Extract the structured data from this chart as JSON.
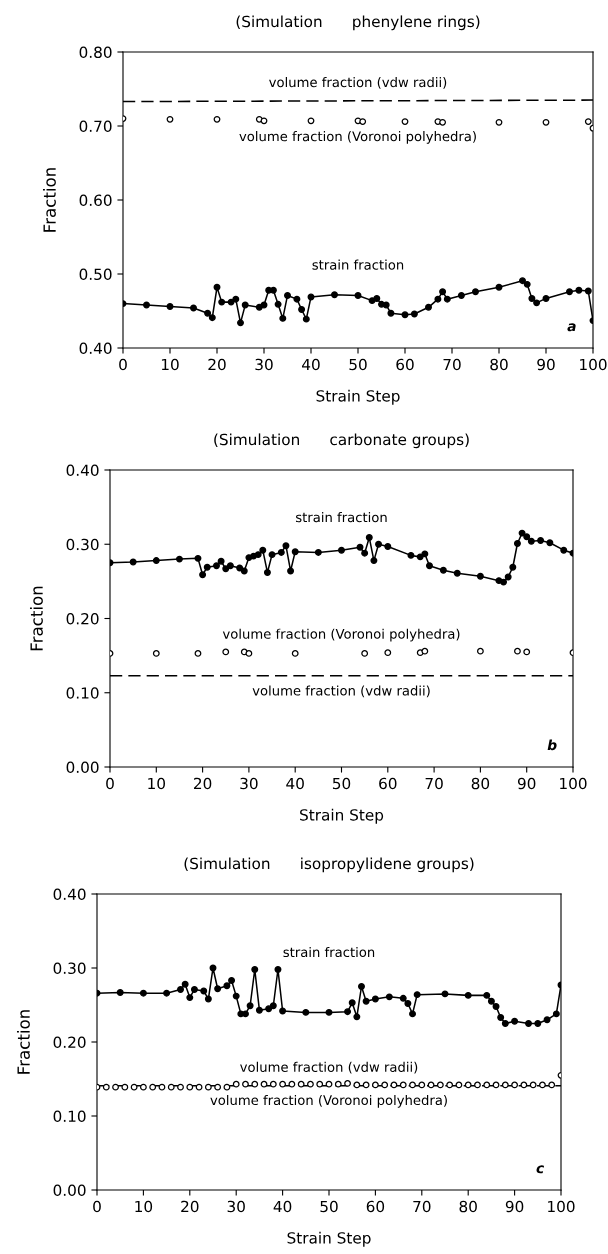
{
  "chart_data": [
    {
      "type": "line",
      "title": "(Simulation      phenylene rings)",
      "xlabel": "Strain Step",
      "ylabel": "Fraction",
      "xlim": [
        0,
        100
      ],
      "xticks": [
        0,
        10,
        20,
        30,
        40,
        50,
        60,
        70,
        80,
        90,
        100
      ],
      "ylim": [
        0.4,
        0.8
      ],
      "yticks": [
        {
          "value": 0.4,
          "label": "0.40"
        },
        {
          "value": 0.5,
          "label": "0.50"
        },
        {
          "value": 0.6,
          "label": "0.60"
        },
        {
          "value": 0.7,
          "label": "0.70"
        },
        {
          "value": 0.8,
          "label": "0.80"
        }
      ],
      "grid": false,
      "legend": false,
      "series": [
        {
          "name": "strain fraction",
          "marker": "circle",
          "line_style": "solid",
          "color": "#000000",
          "x": [
            0,
            5,
            10,
            15,
            18,
            19,
            20,
            21,
            23,
            24,
            25,
            26,
            29,
            30,
            31,
            32,
            33,
            34,
            35,
            37,
            38,
            39,
            40,
            45,
            50,
            53,
            54,
            55,
            56,
            57,
            60,
            62,
            65,
            67,
            68,
            69,
            72,
            75,
            80,
            85,
            86,
            87,
            88,
            90,
            95,
            97,
            99,
            100
          ],
          "values": [
            0.46,
            0.458,
            0.456,
            0.454,
            0.447,
            0.441,
            0.482,
            0.462,
            0.462,
            0.466,
            0.434,
            0.458,
            0.455,
            0.458,
            0.478,
            0.478,
            0.459,
            0.44,
            0.471,
            0.466,
            0.452,
            0.439,
            0.469,
            0.472,
            0.471,
            0.464,
            0.467,
            0.459,
            0.458,
            0.447,
            0.445,
            0.446,
            0.455,
            0.466,
            0.476,
            0.466,
            0.471,
            0.476,
            0.482,
            0.491,
            0.486,
            0.467,
            0.461,
            0.467,
            0.476,
            0.478,
            0.477,
            0.437
          ]
        },
        {
          "name": "volume fraction (vdw radii)",
          "marker": "none",
          "line_style": "dashed",
          "color": "#000000",
          "x": [
            0,
            100
          ],
          "values": [
            0.733,
            0.735
          ]
        },
        {
          "name": "volume fraction (Voronoi polyhedra)",
          "type": "scatter",
          "marker": "circle",
          "color": "#000000",
          "x": [
            0,
            10,
            20,
            29,
            30,
            40,
            50,
            51,
            60,
            67,
            68,
            80,
            90,
            99,
            100
          ],
          "values": [
            0.71,
            0.709,
            0.709,
            0.709,
            0.707,
            0.707,
            0.707,
            0.706,
            0.706,
            0.706,
            0.705,
            0.705,
            0.705,
            0.706,
            0.697
          ]
        }
      ],
      "annotations": [
        "a"
      ]
    },
    {
      "type": "line",
      "title": "(Simulation      carbonate groups)",
      "xlabel": "Strain Step",
      "ylabel": "Fraction",
      "xlim": [
        0,
        100
      ],
      "xticks": [
        0,
        10,
        20,
        30,
        40,
        50,
        60,
        70,
        80,
        90,
        100
      ],
      "ylim": [
        0.0,
        0.4
      ],
      "yticks": [
        {
          "value": 0.0,
          "label": "0.00"
        },
        {
          "value": 0.1,
          "label": "0.10"
        },
        {
          "value": 0.2,
          "label": "0.20"
        },
        {
          "value": 0.3,
          "label": "0.30"
        },
        {
          "value": 0.4,
          "label": "0.40"
        }
      ],
      "grid": false,
      "legend": false,
      "series": [
        {
          "name": "strain fraction",
          "marker": "circle",
          "line_style": "solid",
          "color": "#000000",
          "x": [
            0,
            5,
            10,
            15,
            19,
            20,
            21,
            23,
            24,
            25,
            26,
            28,
            29,
            30,
            31,
            32,
            33,
            34,
            35,
            37,
            38,
            39,
            40,
            45,
            50,
            54,
            55,
            56,
            57,
            58,
            60,
            65,
            67,
            68,
            69,
            72,
            75,
            80,
            84,
            85,
            86,
            87,
            88,
            89,
            90,
            91,
            93,
            95,
            98,
            100
          ],
          "values": [
            0.275,
            0.276,
            0.278,
            0.28,
            0.281,
            0.259,
            0.269,
            0.271,
            0.277,
            0.267,
            0.271,
            0.268,
            0.264,
            0.282,
            0.284,
            0.286,
            0.292,
            0.262,
            0.286,
            0.289,
            0.298,
            0.264,
            0.29,
            0.289,
            0.292,
            0.296,
            0.288,
            0.309,
            0.278,
            0.3,
            0.297,
            0.285,
            0.283,
            0.287,
            0.271,
            0.265,
            0.261,
            0.257,
            0.251,
            0.249,
            0.256,
            0.269,
            0.301,
            0.315,
            0.31,
            0.304,
            0.305,
            0.302,
            0.292,
            0.288
          ]
        },
        {
          "name": "volume fraction (Voronoi polyhedra)",
          "type": "scatter",
          "marker": "circle",
          "color": "#000000",
          "x": [
            0,
            10,
            19,
            25,
            29,
            30,
            40,
            55,
            60,
            67,
            68,
            80,
            88,
            90,
            100
          ],
          "values": [
            0.153,
            0.153,
            0.153,
            0.155,
            0.155,
            0.153,
            0.153,
            0.153,
            0.154,
            0.154,
            0.156,
            0.156,
            0.156,
            0.155,
            0.154
          ]
        },
        {
          "name": "volume fraction (vdw radii)",
          "marker": "none",
          "line_style": "dashed",
          "color": "#000000",
          "x": [
            0,
            100
          ],
          "values": [
            0.123,
            0.123
          ]
        }
      ],
      "annotations": [
        "b"
      ]
    },
    {
      "type": "line",
      "title": "(Simulation      isopropylidene groups)",
      "xlabel": "Strain Step",
      "ylabel": "Fraction",
      "xlim": [
        0,
        100
      ],
      "xticks": [
        0,
        10,
        20,
        30,
        40,
        50,
        60,
        70,
        80,
        90,
        100
      ],
      "ylim": [
        0.0,
        0.4
      ],
      "yticks": [
        {
          "value": 0.0,
          "label": "0.00"
        },
        {
          "value": 0.1,
          "label": "0.10"
        },
        {
          "value": 0.2,
          "label": "0.20"
        },
        {
          "value": 0.3,
          "label": "0.30"
        },
        {
          "value": 0.4,
          "label": "0.40"
        }
      ],
      "grid": false,
      "legend": false,
      "series": [
        {
          "name": "strain fraction",
          "marker": "circle",
          "line_style": "solid",
          "color": "#000000",
          "x": [
            0,
            5,
            10,
            15,
            18,
            19,
            20,
            21,
            23,
            24,
            25,
            26,
            28,
            29,
            30,
            31,
            32,
            33,
            34,
            35,
            37,
            38,
            39,
            40,
            45,
            50,
            54,
            55,
            56,
            57,
            58,
            60,
            63,
            66,
            67,
            68,
            69,
            75,
            80,
            84,
            85,
            86,
            87,
            88,
            90,
            93,
            95,
            97,
            99,
            100
          ],
          "values": [
            0.266,
            0.267,
            0.266,
            0.266,
            0.271,
            0.278,
            0.26,
            0.271,
            0.269,
            0.258,
            0.3,
            0.272,
            0.276,
            0.283,
            0.262,
            0.238,
            0.238,
            0.249,
            0.298,
            0.243,
            0.245,
            0.249,
            0.298,
            0.242,
            0.24,
            0.24,
            0.241,
            0.253,
            0.234,
            0.275,
            0.255,
            0.258,
            0.261,
            0.259,
            0.252,
            0.238,
            0.264,
            0.265,
            0.263,
            0.263,
            0.255,
            0.248,
            0.233,
            0.225,
            0.228,
            0.225,
            0.225,
            0.23,
            0.238,
            0.277
          ]
        },
        {
          "name": "volume fraction (vdw radii)",
          "marker": "none",
          "line_style": "dashed",
          "color": "#000000",
          "x": [
            0,
            100
          ],
          "values": [
            0.141,
            0.141
          ]
        },
        {
          "name": "volume fraction (Voronoi polyhedra)",
          "type": "scatter",
          "marker": "circle",
          "color": "#000000",
          "x": [
            0,
            2,
            4,
            6,
            8,
            10,
            12,
            14,
            16,
            18,
            20,
            22,
            24,
            26,
            28,
            30,
            32,
            34,
            36,
            38,
            40,
            42,
            44,
            46,
            48,
            50,
            52,
            54,
            56,
            58,
            60,
            62,
            64,
            66,
            68,
            70,
            72,
            74,
            76,
            78,
            80,
            82,
            84,
            86,
            88,
            90,
            92,
            94,
            96,
            98,
            100
          ],
          "values": [
            0.139,
            0.139,
            0.139,
            0.139,
            0.139,
            0.139,
            0.139,
            0.139,
            0.139,
            0.139,
            0.139,
            0.139,
            0.139,
            0.139,
            0.139,
            0.143,
            0.143,
            0.143,
            0.143,
            0.143,
            0.143,
            0.143,
            0.143,
            0.143,
            0.143,
            0.143,
            0.143,
            0.144,
            0.142,
            0.142,
            0.142,
            0.142,
            0.142,
            0.142,
            0.142,
            0.142,
            0.142,
            0.142,
            0.142,
            0.142,
            0.142,
            0.142,
            0.142,
            0.142,
            0.142,
            0.142,
            0.142,
            0.142,
            0.142,
            0.142,
            0.155
          ]
        }
      ],
      "annotations": [
        "c"
      ]
    }
  ]
}
